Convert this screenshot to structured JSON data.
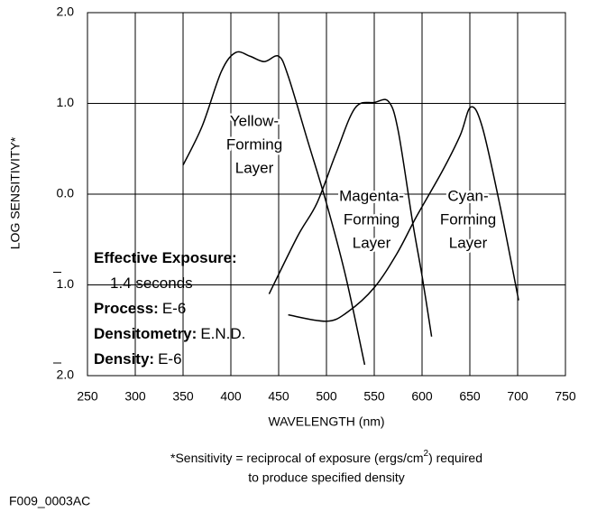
{
  "chart_data": {
    "type": "line",
    "xlabel": "WAVELENGTH (nm)",
    "ylabel": "LOG SENSITIVITY*",
    "xlim": [
      250,
      750
    ],
    "ylim": [
      -2,
      2
    ],
    "xticks": [
      250,
      300,
      350,
      400,
      450,
      500,
      550,
      600,
      650,
      700,
      750
    ],
    "yticks": [
      {
        "value": -2,
        "label": "2.0"
      },
      {
        "value": -1,
        "label": "1.0"
      },
      {
        "value": 0,
        "label": "0.0"
      },
      {
        "value": 1,
        "label": "1.0"
      },
      {
        "value": 2,
        "label": "2.0"
      }
    ],
    "grid": true,
    "color": "#000000",
    "series": [
      {
        "label": [
          "Yellow-",
          "Forming",
          "Layer"
        ],
        "color": "#000000",
        "x": [
          350,
          370,
          390,
          405,
          420,
          435,
          450,
          460,
          480,
          500,
          520,
          540
        ],
        "values": [
          0.32,
          0.75,
          1.35,
          1.56,
          1.52,
          1.46,
          1.52,
          1.3,
          0.6,
          -0.1,
          -0.9,
          -1.88
        ]
      },
      {
        "label": [
          "Magenta-",
          "Forming",
          "Layer"
        ],
        "color": "#000000",
        "x": [
          440,
          470,
          490,
          510,
          530,
          550,
          565,
          575,
          590,
          600,
          610
        ],
        "values": [
          -1.1,
          -0.46,
          -0.1,
          0.45,
          0.95,
          1.01,
          1.02,
          0.7,
          -0.3,
          -0.9,
          -1.57
        ]
      },
      {
        "label": [
          "Cyan-",
          "Forming",
          "Layer"
        ],
        "color": "#000000",
        "x": [
          460,
          500,
          522,
          550,
          574,
          594,
          621,
          640,
          651,
          663,
          682,
          701
        ],
        "values": [
          -1.33,
          -1.4,
          -1.3,
          -1.03,
          -0.65,
          -0.25,
          0.25,
          0.65,
          0.96,
          0.74,
          -0.15,
          -1.17
        ]
      }
    ],
    "info": [
      [
        "Effective Exposure:"
      ],
      [
        "1.4 seconds"
      ],
      [
        "Process:",
        "E-6"
      ],
      [
        "Densitometry:",
        "E.N.D."
      ],
      [
        "Density:",
        "E-6"
      ]
    ],
    "footnote": [
      "*Sensitivity = reciprocal of exposure (ergs/cm",
      "2",
      ") required",
      "to produce specified density"
    ],
    "code": "F009_0003AC"
  }
}
